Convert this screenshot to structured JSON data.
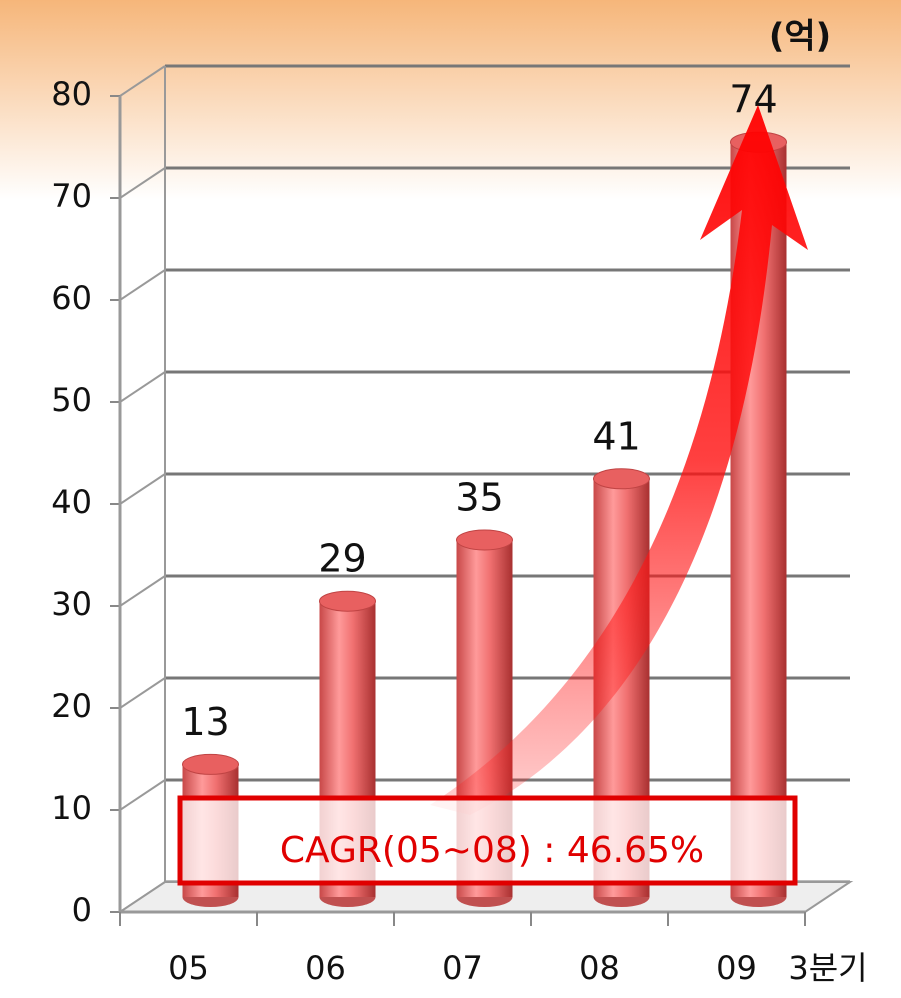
{
  "chart_data": {
    "type": "bar",
    "unit": "(억)",
    "categories": [
      "05",
      "06",
      "07",
      "08",
      "09"
    ],
    "values": [
      13,
      29,
      35,
      41,
      74
    ],
    "period_note": "3분기",
    "annotation": "CAGR(05~08) : 46.65%",
    "color": "#f07070",
    "ylim": [
      0,
      80
    ],
    "yticks": [
      0,
      10,
      20,
      30,
      40,
      50,
      60,
      70,
      80
    ],
    "grid": true
  }
}
